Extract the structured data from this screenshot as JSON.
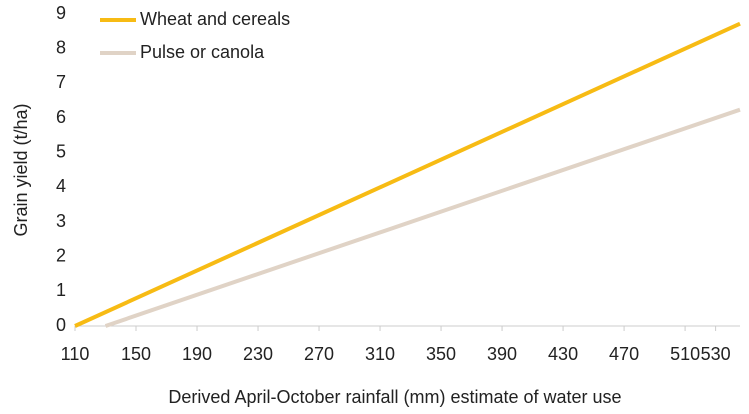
{
  "chart_data": {
    "type": "line",
    "xlabel": "Derived April-October rainfall (mm) estimate of water use",
    "ylabel": "Grain yield (t/ha)",
    "series": [
      {
        "name": "Wheat and cereals",
        "color": "#f7bb14",
        "x": [
          110,
          546
        ],
        "values": [
          0,
          8.72
        ]
      },
      {
        "name": "Pulse or canola",
        "color": "#e0d3c6",
        "x": [
          130,
          546
        ],
        "values": [
          0,
          6.24
        ]
      }
    ],
    "xlim": [
      110,
      546
    ],
    "xticks": [
      110,
      150,
      190,
      230,
      270,
      310,
      350,
      390,
      430,
      470,
      510,
      530
    ],
    "ylim": [
      0,
      9
    ],
    "yticks": [
      0,
      1,
      2,
      3,
      4,
      5,
      6,
      7,
      8,
      9
    ],
    "legend": "top-left"
  }
}
